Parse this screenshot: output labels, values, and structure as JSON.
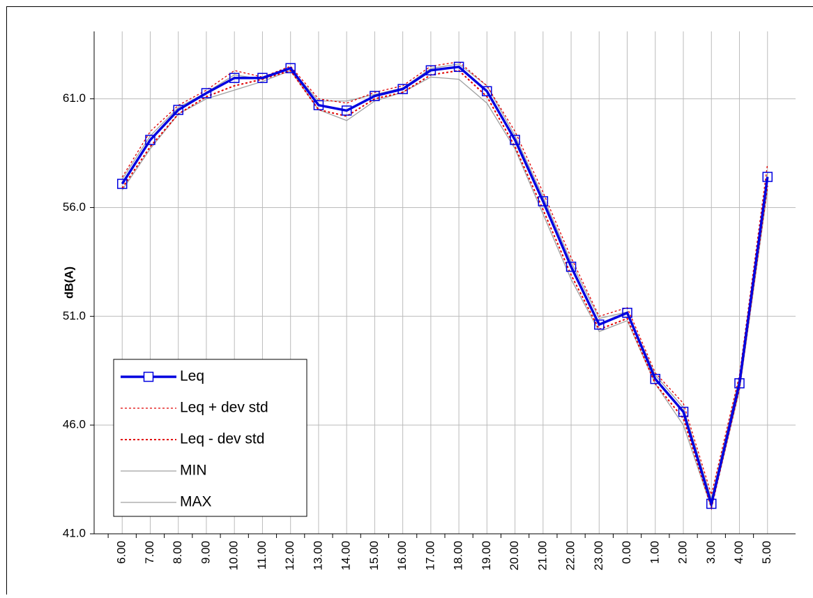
{
  "chart_data": {
    "type": "line",
    "y_label": "dB(A)",
    "categories": [
      "6.00",
      "7.00",
      "8.00",
      "9.00",
      "10.00",
      "11.00",
      "12.00",
      "13.00",
      "14.00",
      "15.00",
      "16.00",
      "17.00",
      "18.00",
      "19.00",
      "20.00",
      "21.00",
      "22.00",
      "23.00",
      "0.00",
      "1.00",
      "2.00",
      "3.00",
      "4.00",
      "5.00"
    ],
    "series": [
      {
        "name": "Leq",
        "color": "#0000e0",
        "line_style": "solid",
        "width": 3.5,
        "marker": "square",
        "values": [
          57.09,
          59.11,
          60.49,
          61.26,
          61.96,
          61.96,
          62.41,
          60.71,
          60.46,
          61.13,
          61.45,
          62.31,
          62.47,
          61.35,
          59.11,
          56.29,
          53.28,
          50.62,
          51.16,
          48.12,
          46.61,
          42.38,
          47.92,
          57.41
        ]
      },
      {
        "name": "Leq + dev std",
        "color": "#e00000",
        "line_style": "dotted",
        "width": 1.3,
        "marker": "none",
        "values": [
          57.4,
          59.5,
          60.7,
          61.4,
          62.3,
          62.0,
          62.5,
          61.0,
          60.8,
          61.3,
          61.6,
          62.5,
          62.7,
          61.6,
          59.5,
          56.7,
          53.7,
          51.0,
          51.4,
          48.4,
          47.0,
          42.8,
          48.3,
          58.0
        ]
      },
      {
        "name": "Leq - dev std",
        "color": "#e00000",
        "line_style": "dotted",
        "width": 2,
        "marker": "none",
        "values": [
          56.9,
          58.8,
          60.3,
          61.1,
          61.6,
          61.9,
          62.3,
          60.5,
          60.2,
          61.0,
          61.3,
          62.1,
          62.3,
          61.1,
          58.8,
          55.9,
          52.9,
          50.4,
          50.9,
          47.9,
          46.3,
          42.2,
          47.7,
          57.0
        ]
      },
      {
        "name": "MIN",
        "color": "#a0a0a0",
        "line_style": "solid",
        "width": 1.3,
        "marker": "none",
        "values": [
          56.8,
          58.7,
          60.3,
          61.0,
          61.4,
          61.8,
          62.3,
          60.5,
          60.0,
          60.9,
          61.3,
          62.0,
          61.9,
          60.8,
          58.7,
          55.7,
          52.7,
          50.3,
          50.8,
          47.9,
          46.0,
          42.2,
          47.6,
          56.8
        ]
      },
      {
        "name": "MAX",
        "color": "#a0a0a0",
        "line_style": "solid",
        "width": 1.3,
        "marker": "none",
        "values": [
          57.3,
          59.3,
          60.6,
          61.3,
          62.1,
          61.9,
          62.4,
          60.9,
          60.9,
          61.2,
          61.5,
          62.4,
          62.6,
          61.6,
          59.3,
          56.5,
          53.5,
          50.9,
          51.2,
          48.3,
          46.8,
          42.6,
          48.2,
          57.6
        ]
      }
    ],
    "ylim": [
      41,
      64.1
    ],
    "yticks": [
      {
        "value": 41,
        "label": "41.0"
      },
      {
        "value": 46,
        "label": "46.0"
      },
      {
        "value": 51,
        "label": "51.0"
      },
      {
        "value": 56,
        "label": "56.0"
      },
      {
        "value": 61,
        "label": "61.0"
      }
    ],
    "grid": true,
    "legend": "lower-left"
  }
}
